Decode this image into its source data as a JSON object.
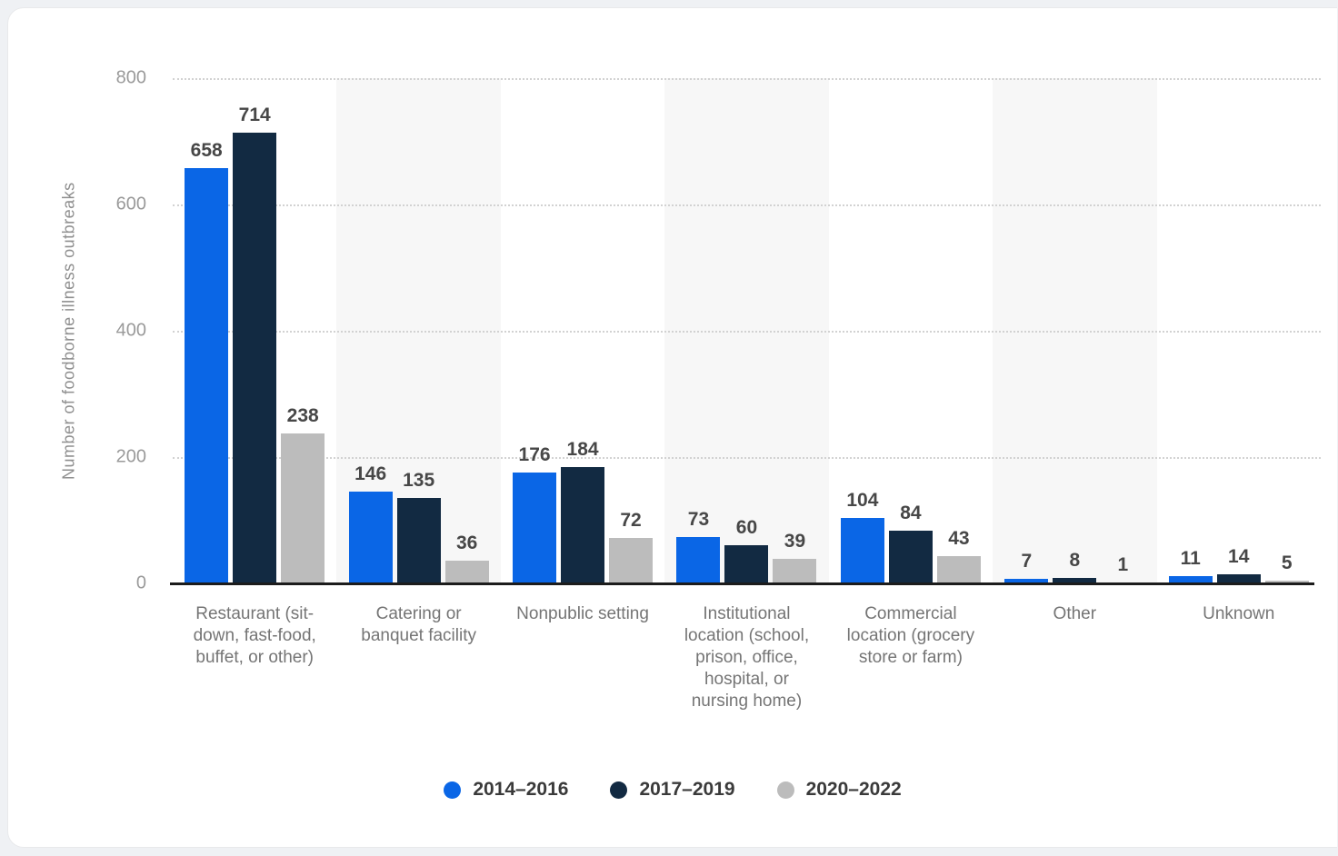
{
  "chart_data": {
    "type": "bar",
    "title": "",
    "ylabel": "Number of foodborne illness outbreaks",
    "xlabel": "",
    "ylim": [
      0,
      800
    ],
    "yticks": [
      0,
      200,
      400,
      600,
      800
    ],
    "grid": "horizontal-dotted",
    "legend_position": "bottom-center",
    "categories": [
      "Restaurant (sit-down, fast-food, buffet, or other)",
      "Catering or banquet facility",
      "Nonpublic setting",
      "Institutional location (school, prison, office, hospital, or nursing home)",
      "Commercial location (grocery store or farm)",
      "Other",
      "Unknown"
    ],
    "series": [
      {
        "name": "2014–2016",
        "color": "#0a66e6",
        "values": [
          658,
          146,
          176,
          73,
          104,
          7,
          11
        ]
      },
      {
        "name": "2017–2019",
        "color": "#122a42",
        "values": [
          714,
          135,
          184,
          60,
          84,
          8,
          14
        ]
      },
      {
        "name": "2020–2022",
        "color": "#bcbcbc",
        "values": [
          238,
          36,
          72,
          39,
          43,
          1,
          5
        ]
      }
    ],
    "shaded_category_indices": [
      1,
      3,
      5
    ],
    "colors": {
      "band": "#f7f7f7",
      "gridline": "#d2d2d2",
      "axis_line": "#1c1c1c",
      "tick_text": "#9a9a9a",
      "category_text": "#757575",
      "value_text": "#474747",
      "legend_text": "#3a3a3a",
      "card_background": "#ffffff",
      "page_background": "#eff1f4"
    }
  }
}
